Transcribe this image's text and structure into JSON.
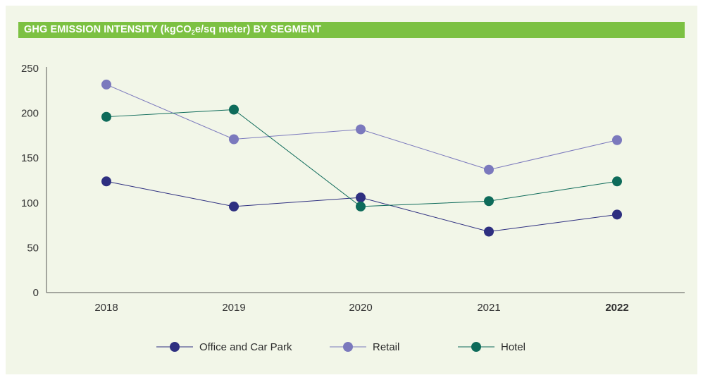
{
  "title": {
    "prefix": "GHG EMISSION INTENSITY (kgCO",
    "subscript": "2",
    "suffix": "e/sq meter) BY SEGMENT"
  },
  "colors": {
    "background": "#f2f6e8",
    "title_bar": "#7cc142",
    "axis": "#555555"
  },
  "chart_data": {
    "type": "line",
    "title": "GHG EMISSION INTENSITY (kgCO2e/sq meter) BY SEGMENT",
    "xlabel": "",
    "ylabel": "",
    "categories": [
      "2018",
      "2019",
      "2020",
      "2021",
      "2022"
    ],
    "highlight_category": "2022",
    "ylim": [
      0,
      250
    ],
    "yticks": [
      0,
      50,
      100,
      150,
      200,
      250
    ],
    "grid": false,
    "legend_position": "bottom",
    "series": [
      {
        "name": "Office and Car Park",
        "color": "#2e2f80",
        "values": [
          124,
          96,
          106,
          68,
          87
        ]
      },
      {
        "name": "Retail",
        "color": "#7b79bd",
        "values": [
          232,
          171,
          182,
          137,
          170
        ]
      },
      {
        "name": "Hotel",
        "color": "#0e6b5a",
        "values": [
          196,
          204,
          96,
          102,
          124
        ]
      }
    ]
  }
}
